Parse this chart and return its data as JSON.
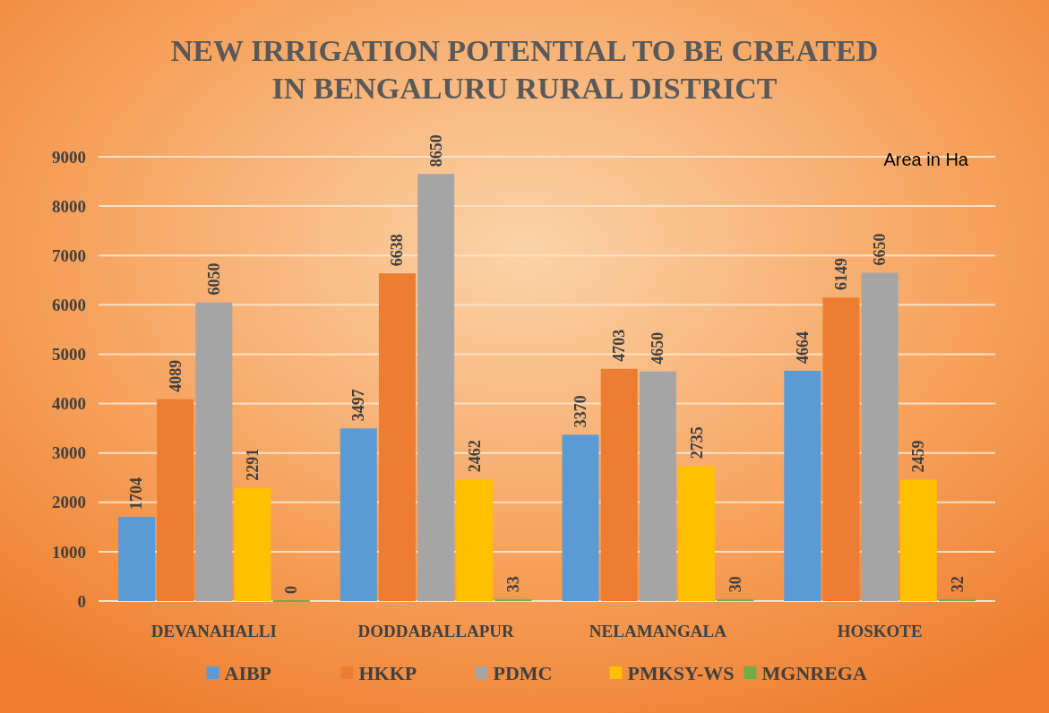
{
  "chart_data": {
    "type": "bar",
    "title": "NEW IRRIGATION  POTENTIAL TO BE CREATED IN BENGALURU RURAL DISTRICT",
    "categories": [
      "DEVANAHALLI",
      "DODDABALLAPUR",
      "NELAMANGALA",
      "HOSKOTE"
    ],
    "series": [
      {
        "name": "AIBP",
        "color": "#5b9bd5",
        "values": [
          1704,
          3497,
          3370,
          4664
        ]
      },
      {
        "name": "HKKP",
        "color": "#ed7d31",
        "values": [
          4089,
          6638,
          4703,
          6149
        ]
      },
      {
        "name": "PDMC",
        "color": "#a5a5a5",
        "values": [
          6050,
          8650,
          4650,
          6650
        ]
      },
      {
        "name": "PMKSY-WS",
        "color": "#ffc000",
        "values": [
          2291,
          2462,
          2735,
          2459
        ]
      },
      {
        "name": "MGNREGA",
        "color": "#70ad47",
        "values": [
          0,
          33,
          30,
          32
        ]
      }
    ],
    "ylim": [
      0,
      9000
    ],
    "yticks": [
      0,
      1000,
      2000,
      3000,
      4000,
      5000,
      6000,
      7000,
      8000,
      9000
    ],
    "grid": "y",
    "legend": "bottom",
    "data_labels": true,
    "annotations": [
      "Area in Ha"
    ]
  }
}
